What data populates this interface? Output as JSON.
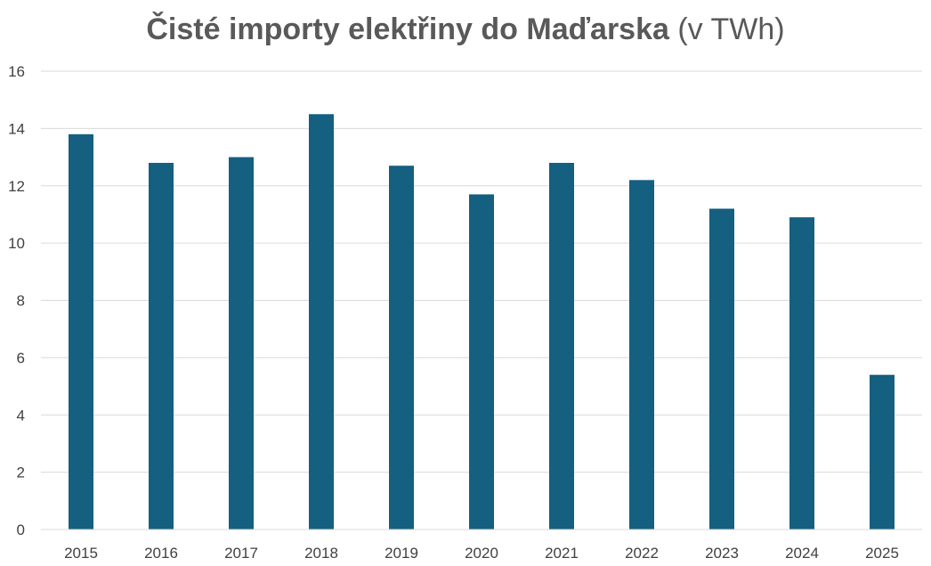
{
  "chart_data": {
    "type": "bar",
    "title": "Čisté importy elektřiny do Maďarska",
    "title_unit": "(v TWh)",
    "xlabel": "",
    "ylabel": "",
    "categories": [
      "2015",
      "2016",
      "2017",
      "2018",
      "2019",
      "2020",
      "2021",
      "2022",
      "2023",
      "2024",
      "2025"
    ],
    "series": [
      {
        "values": [
          13.8,
          12.8,
          13.0,
          14.5,
          12.7,
          11.7,
          12.8,
          12.2,
          11.2,
          10.9,
          5.4
        ],
        "color": "#155f80"
      }
    ],
    "ylim": [
      0,
      16
    ],
    "yticks": [
      0,
      2,
      4,
      6,
      8,
      10,
      12,
      14,
      16
    ],
    "grid": true,
    "legend": "none",
    "colors": {
      "bar": "#155f80",
      "grid": "#d9d9d9",
      "axis": "#d9d9d9",
      "title": "#595959",
      "tick_text": "#404040"
    }
  }
}
